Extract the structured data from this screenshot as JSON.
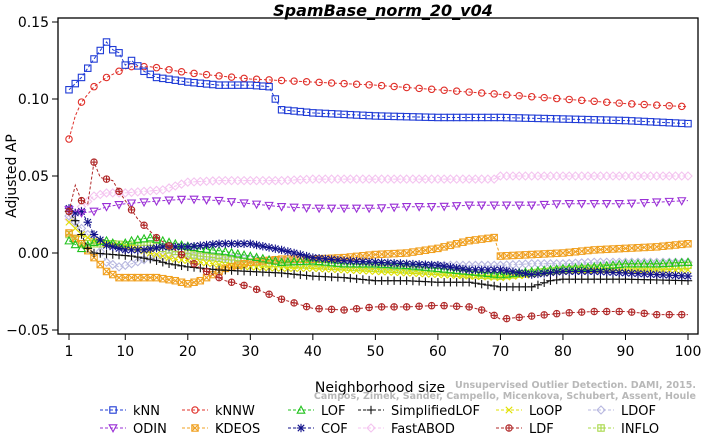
{
  "colors": {
    "kNN": "#1f3bd6",
    "kNNW": "#e0302a",
    "LOF": "#22c21e",
    "SimplifiedLOF": "#111111",
    "LoOP": "#e0e000",
    "LDOF": "#b8b8e0",
    "ODIN": "#9a2fd6",
    "KDEOS": "#f0a020",
    "COF": "#12128a",
    "FastABOD": "#f4c4f0",
    "LDF": "#b02828",
    "INFLO": "#a8d84a"
  },
  "credit": {
    "line1": "Unsupervised Outlier Detection. DAMI, 2015.",
    "line2": "Campos, Zimek, Sander, Campello, Micenkova, Schubert, Assent, Houle"
  },
  "chart_data": {
    "type": "line",
    "title": "SpamBase_norm_20_v04",
    "xlabel": "Neighborhood size",
    "ylabel": "Adjusted AP",
    "xlim": [
      1,
      100
    ],
    "ylim": [
      -0.05,
      0.15
    ],
    "xticks": [
      1,
      10,
      20,
      30,
      40,
      50,
      60,
      70,
      80,
      90,
      100
    ],
    "yticks": [
      -0.05,
      0.0,
      0.05,
      0.1,
      0.15
    ],
    "ytick_labels": [
      "−0.05",
      "0.00",
      "0.05",
      "0.10",
      "0.15"
    ],
    "grid": false,
    "legend_position": "bottom",
    "series": [
      {
        "name": "kNN",
        "marker": "square",
        "points": [
          [
            1,
            0.106
          ],
          [
            3,
            0.114
          ],
          [
            5,
            0.126
          ],
          [
            7,
            0.137
          ],
          [
            8,
            0.132
          ],
          [
            9,
            0.13
          ],
          [
            10,
            0.122
          ],
          [
            11,
            0.125
          ],
          [
            13,
            0.118
          ],
          [
            15,
            0.114
          ],
          [
            20,
            0.111
          ],
          [
            25,
            0.109
          ],
          [
            30,
            0.109
          ],
          [
            33,
            0.108
          ],
          [
            34,
            0.1
          ],
          [
            35,
            0.093
          ],
          [
            40,
            0.091
          ],
          [
            50,
            0.089
          ],
          [
            60,
            0.088
          ],
          [
            70,
            0.088
          ],
          [
            80,
            0.087
          ],
          [
            90,
            0.086
          ],
          [
            100,
            0.084
          ]
        ]
      },
      {
        "name": "kNNW",
        "marker": "circle",
        "points": [
          [
            1,
            0.074
          ],
          [
            2,
            0.089
          ],
          [
            3,
            0.098
          ],
          [
            5,
            0.108
          ],
          [
            7,
            0.114
          ],
          [
            9,
            0.118
          ],
          [
            11,
            0.121
          ],
          [
            14,
            0.121
          ],
          [
            17,
            0.119
          ],
          [
            20,
            0.117
          ],
          [
            30,
            0.113
          ],
          [
            40,
            0.111
          ],
          [
            50,
            0.109
          ],
          [
            60,
            0.106
          ],
          [
            70,
            0.103
          ],
          [
            80,
            0.1
          ],
          [
            90,
            0.097
          ],
          [
            100,
            0.095
          ]
        ]
      },
      {
        "name": "LOF",
        "marker": "triangle-up",
        "points": [
          [
            1,
            0.008
          ],
          [
            3,
            0.003
          ],
          [
            5,
            0.007
          ],
          [
            7,
            0.008
          ],
          [
            9,
            0.005
          ],
          [
            11,
            0.008
          ],
          [
            14,
            0.01
          ],
          [
            18,
            0.006
          ],
          [
            22,
            0.003
          ],
          [
            26,
            0.001
          ],
          [
            30,
            -0.002
          ],
          [
            35,
            -0.006
          ],
          [
            40,
            -0.005
          ],
          [
            45,
            -0.007
          ],
          [
            50,
            -0.007
          ],
          [
            55,
            -0.008
          ],
          [
            60,
            -0.01
          ],
          [
            65,
            -0.012
          ],
          [
            70,
            -0.014
          ],
          [
            75,
            -0.012
          ],
          [
            80,
            -0.01
          ],
          [
            85,
            -0.009
          ],
          [
            90,
            -0.007
          ],
          [
            95,
            -0.007
          ],
          [
            100,
            -0.006
          ]
        ]
      },
      {
        "name": "SimplifiedLOF",
        "marker": "plus",
        "points": [
          [
            1,
            0.027
          ],
          [
            2,
            0.021
          ],
          [
            3,
            0.012
          ],
          [
            4,
            0.003
          ],
          [
            5,
            0.0
          ],
          [
            8,
            -0.001
          ],
          [
            11,
            -0.002
          ],
          [
            14,
            -0.004
          ],
          [
            17,
            -0.007
          ],
          [
            20,
            -0.009
          ],
          [
            25,
            -0.011
          ],
          [
            30,
            -0.012
          ],
          [
            35,
            -0.013
          ],
          [
            40,
            -0.015
          ],
          [
            45,
            -0.016
          ],
          [
            50,
            -0.018
          ],
          [
            55,
            -0.018
          ],
          [
            60,
            -0.019
          ],
          [
            65,
            -0.019
          ],
          [
            70,
            -0.022
          ],
          [
            75,
            -0.022
          ],
          [
            78,
            -0.018
          ],
          [
            80,
            -0.017
          ],
          [
            90,
            -0.017
          ],
          [
            100,
            -0.018
          ]
        ]
      },
      {
        "name": "LoOP",
        "marker": "x",
        "points": [
          [
            1,
            0.02
          ],
          [
            3,
            0.012
          ],
          [
            5,
            0.008
          ],
          [
            8,
            0.005
          ],
          [
            11,
            0.004
          ],
          [
            14,
            0.0
          ],
          [
            18,
            -0.004
          ],
          [
            22,
            -0.006
          ],
          [
            26,
            -0.008
          ],
          [
            30,
            -0.009
          ],
          [
            35,
            -0.01
          ],
          [
            40,
            -0.01
          ],
          [
            45,
            -0.011
          ],
          [
            50,
            -0.012
          ],
          [
            55,
            -0.013
          ],
          [
            60,
            -0.014
          ],
          [
            65,
            -0.015
          ],
          [
            70,
            -0.016
          ],
          [
            75,
            -0.014
          ],
          [
            80,
            -0.012
          ],
          [
            85,
            -0.011
          ],
          [
            90,
            -0.011
          ],
          [
            95,
            -0.011
          ],
          [
            100,
            -0.011
          ]
        ]
      },
      {
        "name": "LDOF",
        "marker": "diamond",
        "points": [
          [
            1,
            0.024
          ],
          [
            3,
            0.016
          ],
          [
            5,
            0.008
          ],
          [
            7,
            -0.006
          ],
          [
            9,
            -0.009
          ],
          [
            11,
            -0.007
          ],
          [
            14,
            -0.003
          ],
          [
            18,
            -0.001
          ],
          [
            22,
            -0.002
          ],
          [
            26,
            -0.003
          ],
          [
            30,
            -0.004
          ],
          [
            35,
            -0.005
          ],
          [
            40,
            -0.006
          ],
          [
            45,
            -0.007
          ],
          [
            50,
            -0.008
          ],
          [
            55,
            -0.009
          ],
          [
            60,
            -0.008
          ],
          [
            65,
            -0.008
          ],
          [
            70,
            -0.008
          ],
          [
            75,
            -0.007
          ],
          [
            80,
            -0.007
          ],
          [
            85,
            -0.006
          ],
          [
            90,
            -0.006
          ],
          [
            95,
            -0.006
          ],
          [
            100,
            -0.006
          ]
        ]
      },
      {
        "name": "ODIN",
        "marker": "triangle-down",
        "points": [
          [
            1,
            0.028
          ],
          [
            3,
            0.026
          ],
          [
            5,
            0.027
          ],
          [
            7,
            0.03
          ],
          [
            10,
            0.032
          ],
          [
            13,
            0.033
          ],
          [
            16,
            0.034
          ],
          [
            20,
            0.035
          ],
          [
            25,
            0.034
          ],
          [
            30,
            0.032
          ],
          [
            35,
            0.03
          ],
          [
            40,
            0.029
          ],
          [
            45,
            0.029
          ],
          [
            50,
            0.029
          ],
          [
            55,
            0.03
          ],
          [
            60,
            0.03
          ],
          [
            65,
            0.031
          ],
          [
            70,
            0.031
          ],
          [
            75,
            0.031
          ],
          [
            80,
            0.032
          ],
          [
            85,
            0.032
          ],
          [
            90,
            0.032
          ],
          [
            95,
            0.033
          ],
          [
            100,
            0.034
          ]
        ]
      },
      {
        "name": "KDEOS",
        "marker": "square-x",
        "points": [
          [
            1,
            0.013
          ],
          [
            3,
            0.006
          ],
          [
            5,
            -0.003
          ],
          [
            7,
            -0.012
          ],
          [
            9,
            -0.016
          ],
          [
            12,
            -0.016
          ],
          [
            15,
            -0.016
          ],
          [
            18,
            -0.018
          ],
          [
            20,
            -0.02
          ],
          [
            22,
            -0.018
          ],
          [
            24,
            -0.014
          ],
          [
            26,
            -0.01
          ],
          [
            30,
            -0.006
          ],
          [
            35,
            -0.004
          ],
          [
            40,
            -0.004
          ],
          [
            45,
            -0.003
          ],
          [
            50,
            -0.001
          ],
          [
            55,
            0.0
          ],
          [
            60,
            0.003
          ],
          [
            65,
            0.008
          ],
          [
            69,
            0.01
          ],
          [
            70,
            -0.002
          ],
          [
            75,
            -0.001
          ],
          [
            80,
            0.0
          ],
          [
            85,
            0.002
          ],
          [
            90,
            0.003
          ],
          [
            95,
            0.004
          ],
          [
            100,
            0.006
          ]
        ]
      },
      {
        "name": "COF",
        "marker": "asterisk",
        "points": [
          [
            1,
            0.029
          ],
          [
            2,
            0.026
          ],
          [
            3,
            0.027
          ],
          [
            4,
            0.02
          ],
          [
            5,
            0.012
          ],
          [
            7,
            0.005
          ],
          [
            10,
            0.002
          ],
          [
            13,
            0.002
          ],
          [
            16,
            0.004
          ],
          [
            20,
            0.004
          ],
          [
            25,
            0.006
          ],
          [
            30,
            0.006
          ],
          [
            35,
            0.002
          ],
          [
            40,
            -0.003
          ],
          [
            45,
            -0.005
          ],
          [
            50,
            -0.006
          ],
          [
            55,
            -0.007
          ],
          [
            60,
            -0.008
          ],
          [
            65,
            -0.011
          ],
          [
            70,
            -0.011
          ],
          [
            75,
            -0.014
          ],
          [
            80,
            -0.012
          ],
          [
            85,
            -0.012
          ],
          [
            90,
            -0.013
          ],
          [
            95,
            -0.014
          ],
          [
            100,
            -0.015
          ]
        ]
      },
      {
        "name": "FastABOD",
        "marker": "diamond",
        "points": [
          [
            1,
            0.022
          ],
          [
            3,
            0.03
          ],
          [
            5,
            0.037
          ],
          [
            7,
            0.039
          ],
          [
            10,
            0.039
          ],
          [
            13,
            0.04
          ],
          [
            16,
            0.041
          ],
          [
            20,
            0.046
          ],
          [
            25,
            0.047
          ],
          [
            30,
            0.047
          ],
          [
            35,
            0.047
          ],
          [
            40,
            0.048
          ],
          [
            45,
            0.048
          ],
          [
            50,
            0.048
          ],
          [
            55,
            0.048
          ],
          [
            60,
            0.048
          ],
          [
            65,
            0.048
          ],
          [
            69,
            0.048
          ],
          [
            70,
            0.05
          ],
          [
            75,
            0.05
          ],
          [
            80,
            0.05
          ],
          [
            85,
            0.05
          ],
          [
            90,
            0.05
          ],
          [
            95,
            0.05
          ],
          [
            100,
            0.05
          ]
        ]
      },
      {
        "name": "LDF",
        "marker": "circle-plus",
        "points": [
          [
            1,
            0.027
          ],
          [
            2,
            0.044
          ],
          [
            3,
            0.034
          ],
          [
            4,
            0.032
          ],
          [
            5,
            0.059
          ],
          [
            6,
            0.049
          ],
          [
            7,
            0.048
          ],
          [
            8,
            0.047
          ],
          [
            9,
            0.04
          ],
          [
            10,
            0.034
          ],
          [
            12,
            0.022
          ],
          [
            15,
            0.01
          ],
          [
            18,
            0.002
          ],
          [
            22,
            -0.01
          ],
          [
            26,
            -0.018
          ],
          [
            30,
            -0.022
          ],
          [
            35,
            -0.03
          ],
          [
            40,
            -0.036
          ],
          [
            45,
            -0.037
          ],
          [
            50,
            -0.035
          ],
          [
            55,
            -0.035
          ],
          [
            60,
            -0.034
          ],
          [
            65,
            -0.035
          ],
          [
            68,
            -0.038
          ],
          [
            70,
            -0.043
          ],
          [
            75,
            -0.041
          ],
          [
            80,
            -0.039
          ],
          [
            85,
            -0.038
          ],
          [
            90,
            -0.038
          ],
          [
            95,
            -0.04
          ],
          [
            100,
            -0.04
          ]
        ]
      },
      {
        "name": "INFLO",
        "marker": "square-plus",
        "points": [
          [
            1,
            0.012
          ],
          [
            3,
            0.006
          ],
          [
            5,
            0.006
          ],
          [
            8,
            0.006
          ],
          [
            11,
            0.005
          ],
          [
            14,
            0.005
          ],
          [
            18,
            0.001
          ],
          [
            22,
            -0.002
          ],
          [
            26,
            -0.004
          ],
          [
            30,
            -0.006
          ],
          [
            35,
            -0.007
          ],
          [
            40,
            -0.008
          ],
          [
            45,
            -0.009
          ],
          [
            50,
            -0.01
          ],
          [
            55,
            -0.011
          ],
          [
            60,
            -0.012
          ],
          [
            65,
            -0.014
          ],
          [
            70,
            -0.015
          ],
          [
            75,
            -0.013
          ],
          [
            80,
            -0.011
          ],
          [
            85,
            -0.01
          ],
          [
            90,
            -0.009
          ],
          [
            95,
            -0.009
          ],
          [
            100,
            -0.008
          ]
        ]
      }
    ]
  }
}
